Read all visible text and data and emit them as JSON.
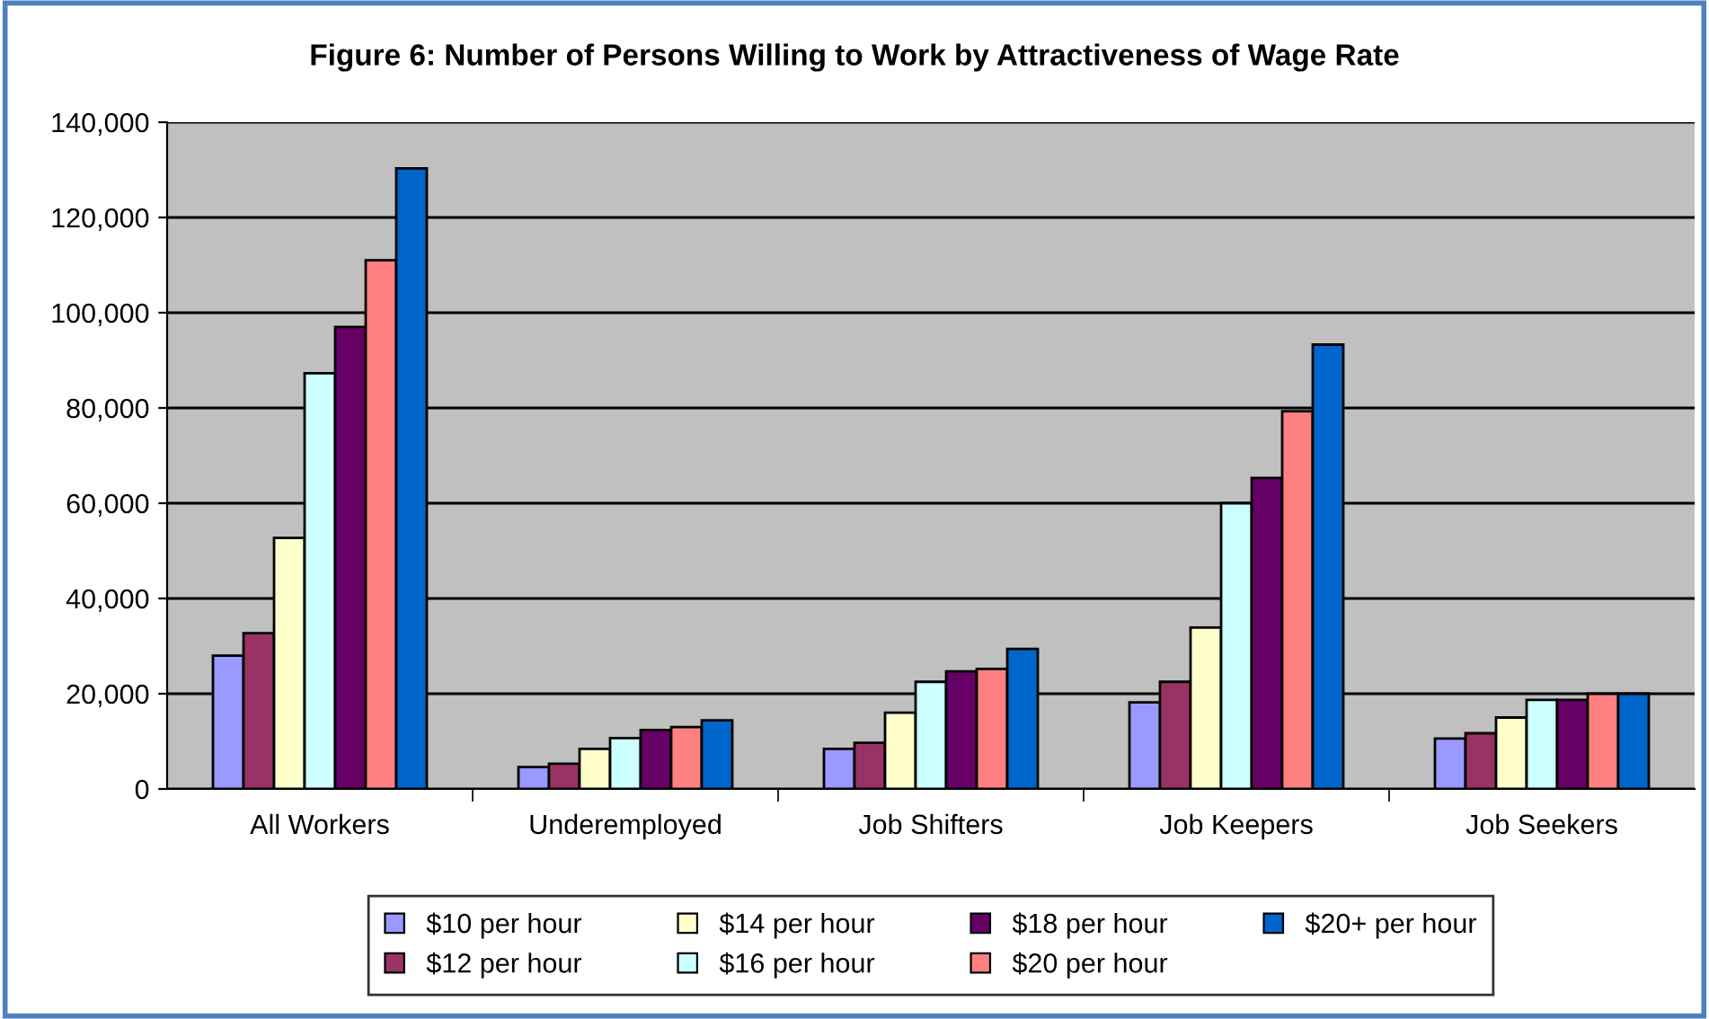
{
  "chart_data": {
    "type": "bar",
    "title": "Figure 6: Number of Persons Willing to Work by Attractiveness of Wage Rate",
    "categories": [
      "All Workers",
      "Underemployed",
      "Job Shifters",
      "Job Keepers",
      "Job Seekers"
    ],
    "series": [
      {
        "name": "$10 per hour",
        "color": "#9999ff",
        "values": [
          28000,
          4600,
          8400,
          18200,
          10600
        ]
      },
      {
        "name": "$12 per hour",
        "color": "#993366",
        "values": [
          32700,
          5300,
          9700,
          22500,
          11700
        ]
      },
      {
        "name": "$14 per hour",
        "color": "#ffffcc",
        "values": [
          52700,
          8400,
          16000,
          33900,
          15000
        ]
      },
      {
        "name": "$16 per hour",
        "color": "#ccffff",
        "values": [
          87300,
          10700,
          22500,
          60000,
          18700
        ]
      },
      {
        "name": "$18 per hour",
        "color": "#660066",
        "values": [
          97000,
          12400,
          24700,
          65300,
          18700
        ]
      },
      {
        "name": "$20 per hour",
        "color": "#ff8080",
        "values": [
          111000,
          13000,
          25200,
          79300,
          20000
        ]
      },
      {
        "name": "$20+ per hour",
        "color": "#0066cc",
        "values": [
          130300,
          14400,
          29400,
          93300,
          20000
        ]
      }
    ],
    "ylim": [
      0,
      140000
    ],
    "yticks": [
      {
        "value": 0,
        "label": "0"
      },
      {
        "value": 20000,
        "label": "20,000"
      },
      {
        "value": 40000,
        "label": "40,000"
      },
      {
        "value": 60000,
        "label": "60,000"
      },
      {
        "value": 80000,
        "label": "80,000"
      },
      {
        "value": 100000,
        "label": "100,000"
      },
      {
        "value": 120000,
        "label": "120,000"
      },
      {
        "value": 140000,
        "label": "140,000"
      }
    ],
    "grid": "y",
    "legend": "bottom"
  }
}
